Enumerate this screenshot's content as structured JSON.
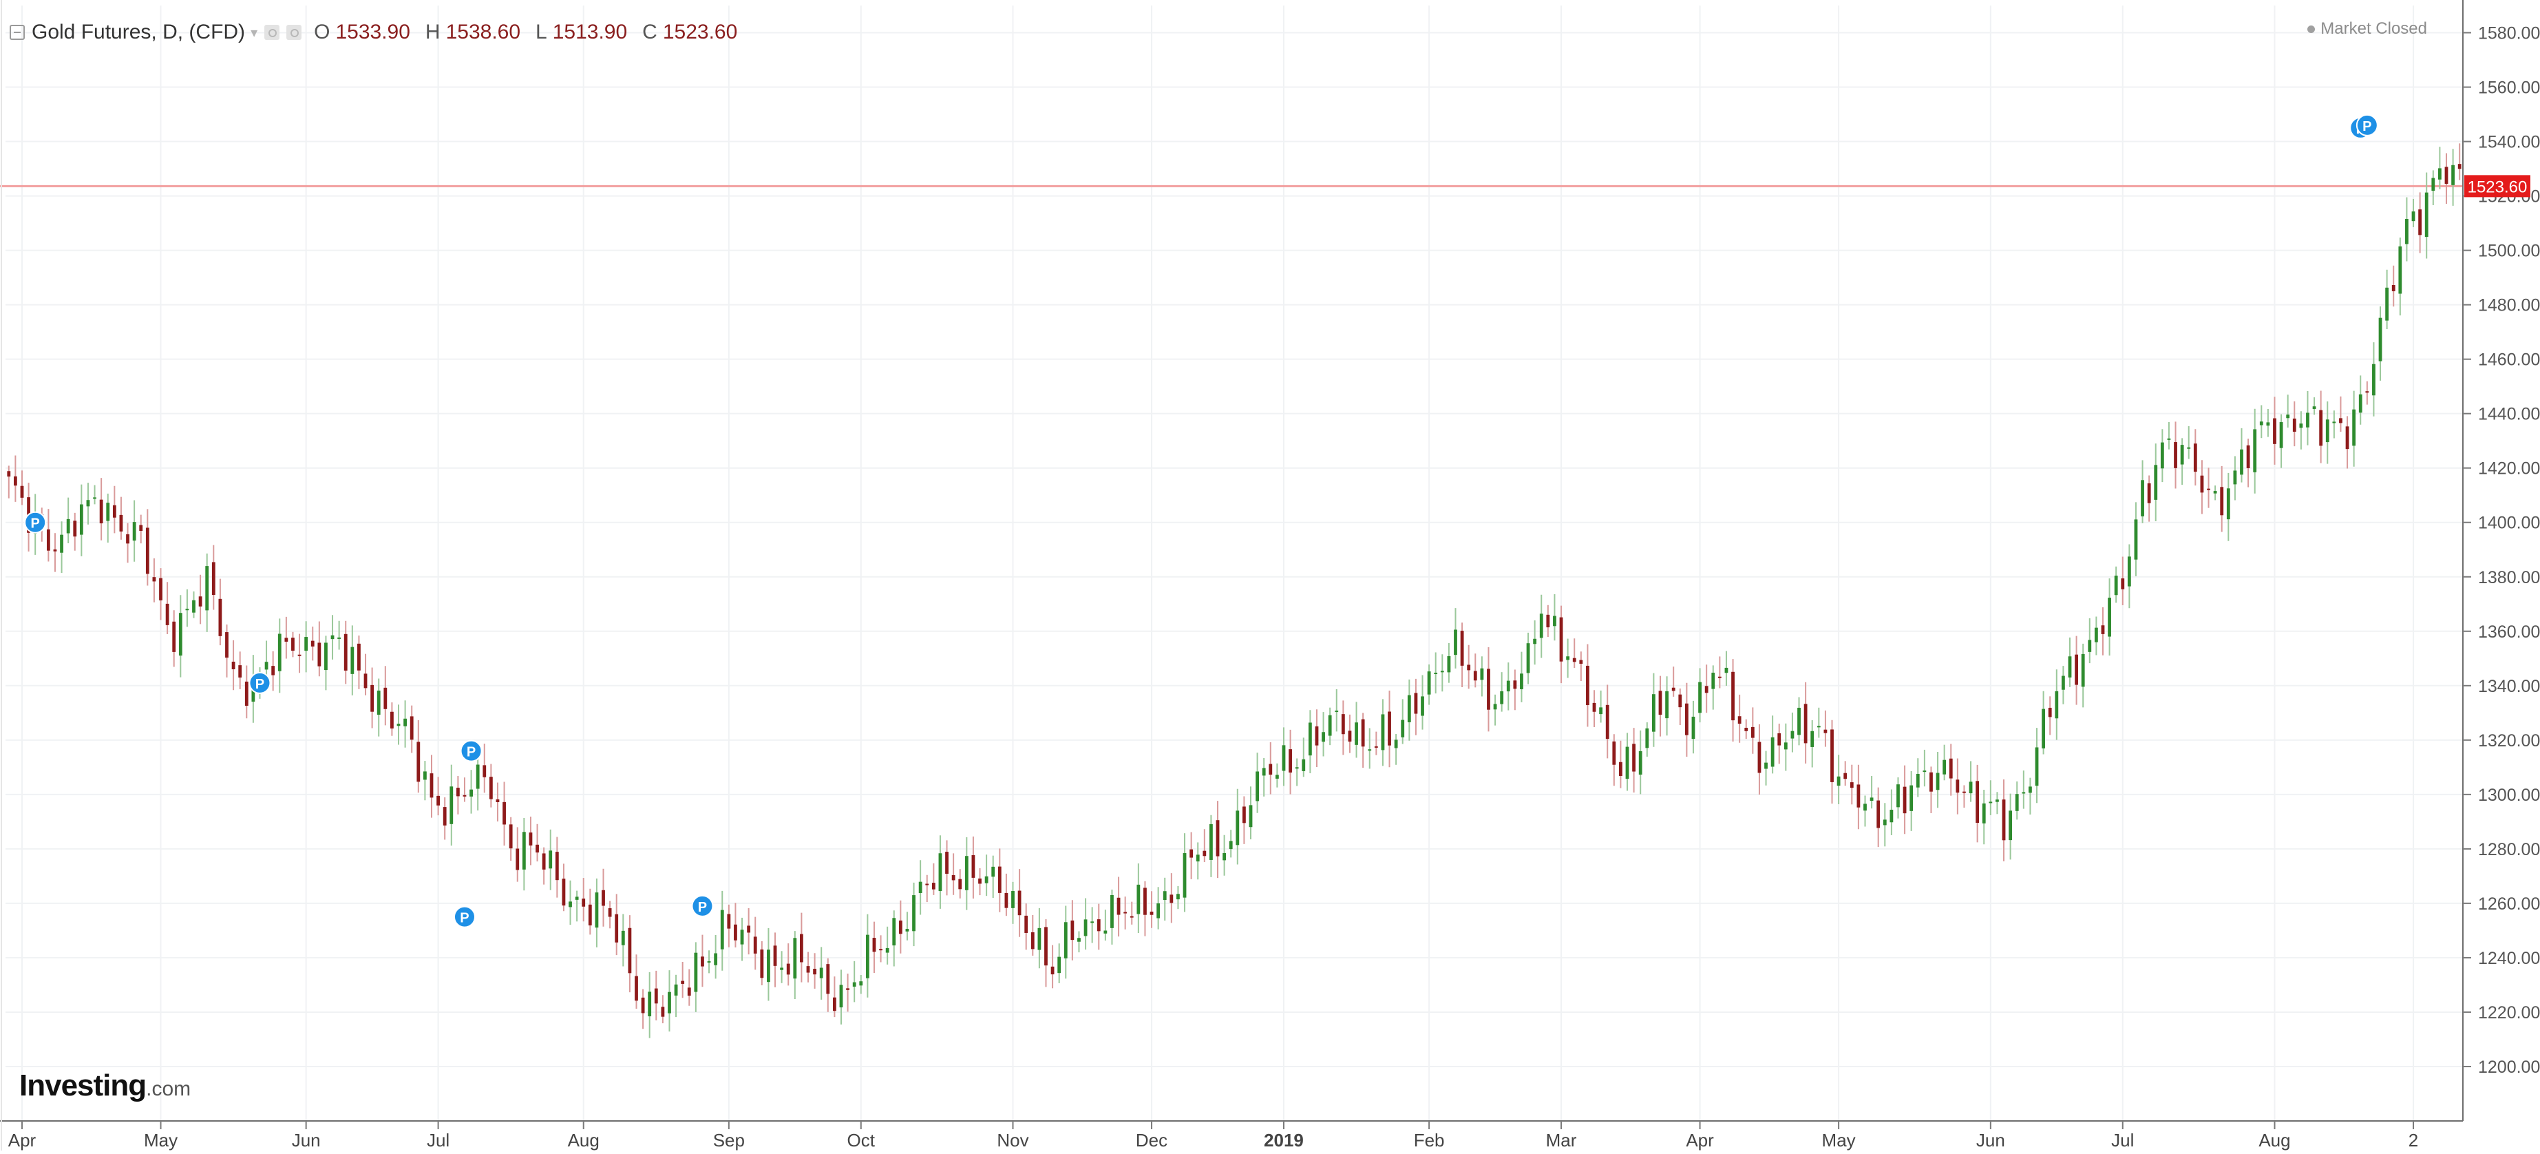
{
  "header": {
    "title": "Gold Futures, D, (CFD)",
    "ohlc": [
      {
        "key": "O",
        "value": "1533.90"
      },
      {
        "key": "H",
        "value": "1538.60"
      },
      {
        "key": "L",
        "value": "1513.90"
      },
      {
        "key": "C",
        "value": "1523.60"
      }
    ],
    "status": "Market Closed"
  },
  "branding": {
    "name": "Investing",
    "suffix": ".com"
  },
  "colors": {
    "up": "#2e8b2e",
    "down": "#8e1a1a",
    "last_price_line": "#f29f9f",
    "last_price_tag": "#e41b1b",
    "pivot_marker": "#1e90e6"
  },
  "chart_data": {
    "type": "candlestick",
    "price_ticks": [
      1200,
      1220,
      1240,
      1260,
      1280,
      1300,
      1320,
      1340,
      1360,
      1380,
      1400,
      1420,
      1440,
      1460,
      1480,
      1500,
      1520,
      1540,
      1560,
      1580
    ],
    "price_tick_labels": [
      "1200.00",
      "1220.00",
      "1240.00",
      "1260.00",
      "1280.00",
      "1300.00",
      "1320.00",
      "1340.00",
      "1360.00",
      "1380.00",
      "1400.00",
      "1420.00",
      "1440.00",
      "1460.00",
      "1480.00",
      "1500.00",
      "1520.00",
      "1540.00",
      "1560.00",
      "1580.00"
    ],
    "ylim": [
      1180,
      1590
    ],
    "x_labels": [
      {
        "label": "Apr",
        "bar": 2
      },
      {
        "label": "May",
        "bar": 23
      },
      {
        "label": "Jun",
        "bar": 45
      },
      {
        "label": "Jul",
        "bar": 65
      },
      {
        "label": "Aug",
        "bar": 87
      },
      {
        "label": "Sep",
        "bar": 109
      },
      {
        "label": "Oct",
        "bar": 129
      },
      {
        "label": "Nov",
        "bar": 152
      },
      {
        "label": "Dec",
        "bar": 173
      },
      {
        "label": "2019",
        "bar": 193,
        "bold": true
      },
      {
        "label": "Feb",
        "bar": 215
      },
      {
        "label": "Mar",
        "bar": 235
      },
      {
        "label": "Apr",
        "bar": 256
      },
      {
        "label": "May",
        "bar": 277
      },
      {
        "label": "Jun",
        "bar": 300
      },
      {
        "label": "Jul",
        "bar": 320
      },
      {
        "label": "Aug",
        "bar": 343
      },
      {
        "label": "2",
        "bar": 364
      }
    ],
    "last_price": 1523.6,
    "last_price_label": "1523.60",
    "pivot_label": "P",
    "pivots": [
      {
        "bar": 4,
        "price": 1400
      },
      {
        "bar": 38,
        "price": 1341
      },
      {
        "bar": 69,
        "price": 1255
      },
      {
        "bar": 70,
        "price": 1316
      },
      {
        "bar": 105,
        "price": 1259
      },
      {
        "bar": 356,
        "price": 1545
      },
      {
        "bar": 357,
        "price": 1546
      }
    ],
    "anchors": [
      [
        0,
        1410
      ],
      [
        8,
        1392
      ],
      [
        14,
        1410
      ],
      [
        20,
        1390
      ],
      [
        24,
        1362
      ],
      [
        30,
        1375
      ],
      [
        34,
        1345
      ],
      [
        38,
        1342
      ],
      [
        44,
        1358
      ],
      [
        50,
        1352
      ],
      [
        55,
        1340
      ],
      [
        60,
        1320
      ],
      [
        64,
        1300
      ],
      [
        68,
        1298
      ],
      [
        73,
        1305
      ],
      [
        76,
        1283
      ],
      [
        80,
        1276
      ],
      [
        86,
        1262
      ],
      [
        92,
        1250
      ],
      [
        96,
        1225
      ],
      [
        100,
        1220
      ],
      [
        104,
        1238
      ],
      [
        108,
        1250
      ],
      [
        112,
        1244
      ],
      [
        118,
        1238
      ],
      [
        123,
        1232
      ],
      [
        127,
        1228
      ],
      [
        131,
        1240
      ],
      [
        137,
        1262
      ],
      [
        142,
        1270
      ],
      [
        146,
        1275
      ],
      [
        150,
        1262
      ],
      [
        155,
        1252
      ],
      [
        158,
        1235
      ],
      [
        162,
        1250
      ],
      [
        166,
        1258
      ],
      [
        170,
        1254
      ],
      [
        175,
        1264
      ],
      [
        180,
        1276
      ],
      [
        184,
        1284
      ],
      [
        188,
        1298
      ],
      [
        192,
        1310
      ],
      [
        197,
        1320
      ],
      [
        202,
        1325
      ],
      [
        206,
        1322
      ],
      [
        210,
        1318
      ],
      [
        214,
        1342
      ],
      [
        218,
        1352
      ],
      [
        222,
        1342
      ],
      [
        226,
        1338
      ],
      [
        230,
        1345
      ],
      [
        232,
        1368
      ],
      [
        236,
        1355
      ],
      [
        240,
        1328
      ],
      [
        244,
        1312
      ],
      [
        247,
        1318
      ],
      [
        251,
        1336
      ],
      [
        254,
        1330
      ],
      [
        258,
        1345
      ],
      [
        262,
        1326
      ],
      [
        266,
        1315
      ],
      [
        270,
        1320
      ],
      [
        274,
        1328
      ],
      [
        278,
        1300
      ],
      [
        282,
        1292
      ],
      [
        286,
        1300
      ],
      [
        290,
        1302
      ],
      [
        294,
        1312
      ],
      [
        298,
        1294
      ],
      [
        302,
        1290
      ],
      [
        306,
        1310
      ],
      [
        309,
        1330
      ],
      [
        313,
        1350
      ],
      [
        316,
        1362
      ],
      [
        320,
        1375
      ],
      [
        323,
        1412
      ],
      [
        326,
        1430
      ],
      [
        330,
        1420
      ],
      [
        334,
        1410
      ],
      [
        338,
        1420
      ],
      [
        342,
        1436
      ],
      [
        346,
        1440
      ],
      [
        350,
        1432
      ],
      [
        354,
        1438
      ],
      [
        357,
        1450
      ],
      [
        360,
        1478
      ],
      [
        363,
        1512
      ],
      [
        366,
        1520
      ],
      [
        368,
        1528
      ],
      [
        370,
        1524
      ]
    ]
  }
}
